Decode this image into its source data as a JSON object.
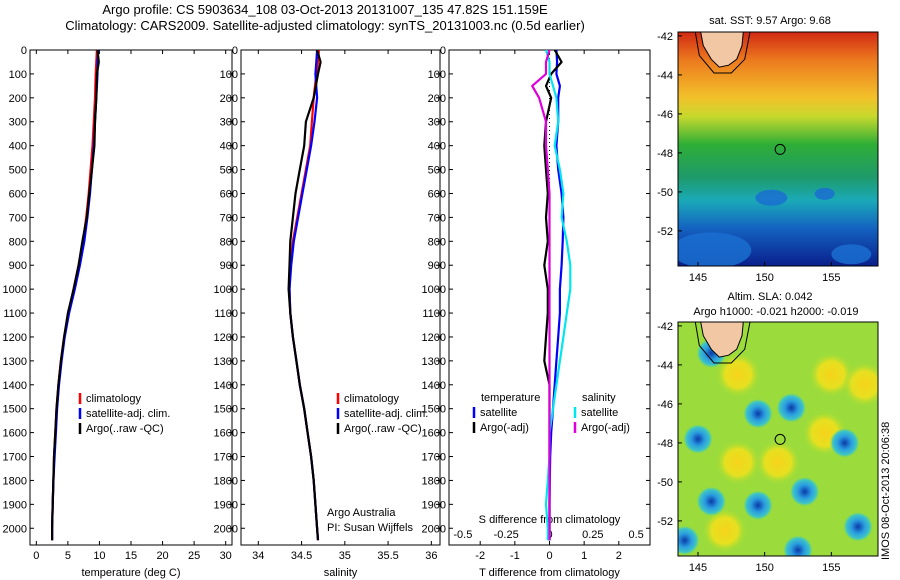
{
  "title": {
    "line1": "Argo profile: CS 5903634_108 03-Oct-2013 20131007_135 47.82S 151.159E",
    "line2": "Climatology: CARS2009. Satellite-adjusted climatology: synTS_20131003.nc (0.5d earlier)"
  },
  "depth_ticks": [
    0,
    100,
    200,
    300,
    400,
    500,
    600,
    700,
    800,
    900,
    1000,
    1100,
    1200,
    1300,
    1400,
    1500,
    1600,
    1700,
    1800,
    1900,
    2000
  ],
  "colors": {
    "red": "#ff0000",
    "blue": "#0000ff",
    "black": "#000000",
    "cyan": "#00e5ee",
    "magenta": "#dd00dd"
  },
  "chart_data": [
    {
      "type": "line",
      "xlabel": "temperature (deg C)",
      "xlim": [
        -1,
        31
      ],
      "ylim": [
        2070,
        0
      ],
      "x_ticks": [
        0,
        5,
        10,
        15,
        20,
        25,
        30
      ],
      "legend": [
        "climatology",
        "satellite-adj. clim.",
        "Argo(..raw -QC)"
      ],
      "depth": [
        0,
        50,
        100,
        200,
        300,
        400,
        500,
        600,
        700,
        800,
        900,
        1000,
        1100,
        1200,
        1300,
        1400,
        1500,
        1600,
        1700,
        1800,
        1900,
        2000,
        2050
      ],
      "series": [
        {
          "name": "climatology",
          "color": "red",
          "values": [
            9.6,
            9.5,
            9.4,
            9.3,
            9.1,
            8.9,
            8.6,
            8.3,
            7.9,
            7.4,
            6.7,
            5.9,
            5.1,
            4.4,
            3.9,
            3.5,
            3.2,
            3.0,
            2.8,
            2.7,
            2.6,
            2.5,
            2.5
          ]
        },
        {
          "name": "satellite-adj. clim.",
          "color": "blue",
          "values": [
            9.8,
            9.7,
            9.7,
            9.5,
            9.3,
            9.1,
            8.8,
            8.5,
            8.1,
            7.6,
            6.9,
            6.1,
            5.2,
            4.5,
            4.0,
            3.6,
            3.3,
            3.1,
            2.9,
            2.7,
            2.6,
            2.5,
            2.5
          ]
        },
        {
          "name": "Argo(..raw -QC)",
          "color": "black",
          "values": [
            9.7,
            9.9,
            9.6,
            9.5,
            9.3,
            9.2,
            8.8,
            8.4,
            8.0,
            7.3,
            6.7,
            5.9,
            5.0,
            4.4,
            3.9,
            3.5,
            3.2,
            3.0,
            2.8,
            2.7,
            2.6,
            2.5,
            2.5
          ]
        }
      ]
    },
    {
      "type": "line",
      "xlabel": "salinity",
      "xlim": [
        33.8,
        36.1
      ],
      "ylim": [
        2070,
        0
      ],
      "x_ticks": [
        34,
        34.5,
        35,
        35.5,
        36
      ],
      "legend": [
        "climatology",
        "satellite-adj. clim.",
        "Argo(..raw -QC)"
      ],
      "annotation": [
        "Argo Australia",
        "PI: Susan Wijffels"
      ],
      "depth": [
        0,
        50,
        100,
        200,
        300,
        400,
        500,
        600,
        700,
        800,
        900,
        1000,
        1100,
        1200,
        1300,
        1400,
        1500,
        1600,
        1700,
        1800,
        1900,
        2000,
        2050
      ],
      "series": [
        {
          "name": "climatology",
          "color": "red",
          "values": [
            34.7,
            34.69,
            34.67,
            34.64,
            34.62,
            34.6,
            34.55,
            34.5,
            34.45,
            34.4,
            34.37,
            34.36,
            34.37,
            34.4,
            34.44,
            34.48,
            34.53,
            34.57,
            34.61,
            34.64,
            34.66,
            34.68,
            34.69
          ]
        },
        {
          "name": "satellite-adj. clim.",
          "color": "blue",
          "values": [
            34.68,
            34.67,
            34.66,
            34.68,
            34.65,
            34.61,
            34.56,
            34.51,
            34.46,
            34.41,
            34.38,
            34.36,
            34.37,
            34.4,
            34.44,
            34.48,
            34.53,
            34.57,
            34.61,
            34.64,
            34.66,
            34.68,
            34.69
          ]
        },
        {
          "name": "Argo(..raw -QC)",
          "color": "black",
          "values": [
            34.68,
            34.72,
            34.69,
            34.64,
            34.55,
            34.53,
            34.48,
            34.43,
            34.4,
            34.37,
            34.36,
            34.35,
            34.37,
            34.4,
            34.44,
            34.48,
            34.53,
            34.57,
            34.61,
            34.64,
            34.66,
            34.68,
            34.69
          ]
        }
      ]
    },
    {
      "type": "line",
      "xlabel": "T difference from climatology",
      "top_label": "S difference from climatology",
      "xlim": [
        -2.9,
        2.9
      ],
      "ylim": [
        2070,
        0
      ],
      "x_ticks": [
        -2,
        -1,
        0,
        1,
        2
      ],
      "s_ticks": [
        -0.5,
        -0.25,
        0,
        0.25,
        0.5
      ],
      "s_tick_labels": [
        "-0.5",
        "-0.25",
        "0",
        "0.25",
        "0.5"
      ],
      "legend_temperature": {
        "header": "temperature",
        "items": [
          "satellite",
          "Argo(-adj)"
        ]
      },
      "legend_salinity": {
        "header": "salinity",
        "items": [
          "satellite",
          "Argo(-adj)"
        ]
      },
      "depth": [
        0,
        50,
        100,
        150,
        200,
        300,
        400,
        500,
        600,
        700,
        800,
        900,
        1000,
        1100,
        1200,
        1300,
        1400,
        1500,
        1600,
        1700,
        1800,
        1900,
        2000,
        2050
      ],
      "series": [
        {
          "name": "T satellite",
          "color": "blue",
          "values": [
            0.2,
            0.22,
            0.2,
            0.3,
            0.25,
            0.25,
            0.2,
            0.25,
            0.35,
            0.4,
            0.38,
            0.35,
            0.3,
            0.3,
            0.25,
            0.2,
            0.15,
            0.1,
            0.05,
            0.02,
            0.01,
            0.0,
            0.0,
            0.0
          ]
        },
        {
          "name": "T Argo(-adj)",
          "color": "black",
          "values": [
            0.15,
            0.35,
            0.05,
            -0.1,
            0.05,
            -0.1,
            -0.15,
            -0.1,
            -0.05,
            -0.1,
            -0.05,
            -0.15,
            -0.05,
            -0.05,
            -0.1,
            -0.15,
            0.0,
            0.0,
            0.0,
            0.0,
            0.0,
            0.0,
            0.0,
            0.0
          ]
        },
        {
          "name": "S satellite",
          "color": "cyan",
          "values": [
            -0.02,
            0.0,
            0.0,
            0.02,
            0.04,
            0.05,
            0.03,
            0.06,
            0.08,
            0.07,
            0.1,
            0.12,
            0.12,
            0.1,
            0.08,
            0.06,
            0.04,
            0.02,
            0.0,
            0.0,
            -0.01,
            -0.02,
            -0.01,
            -0.01
          ]
        },
        {
          "name": "S Argo(-adj)",
          "color": "magenta",
          "values": [
            0.0,
            -0.02,
            -0.02,
            -0.1,
            -0.06,
            -0.02,
            -0.02,
            -0.01,
            0.0,
            0.0,
            0.0,
            0.0,
            0.0,
            0.0,
            0.0,
            0.0,
            0.0,
            0.0,
            0.0,
            0.0,
            0.0,
            0.0,
            0.0,
            0.0
          ]
        }
      ]
    },
    {
      "type": "heatmap",
      "title": "sat. SST: 9.57 Argo: 9.68",
      "xlim": [
        143.5,
        158.5
      ],
      "ylim": [
        -53.8,
        -41.8
      ],
      "x_ticks": [
        145,
        150,
        155
      ],
      "y_ticks": [
        -42,
        -44,
        -46,
        -48,
        -50,
        -52
      ],
      "marker": {
        "lon": 151.159,
        "lat": -47.82
      }
    },
    {
      "type": "heatmap",
      "title": "Altim. SLA: 0.042",
      "subtitle": "Argo h1000: -0.021 h2000: -0.019",
      "xlim": [
        143.5,
        158.5
      ],
      "ylim": [
        -53.8,
        -41.8
      ],
      "x_ticks": [
        145,
        150,
        155
      ],
      "y_ticks": [
        -42,
        -44,
        -46,
        -48,
        -50,
        -52
      ],
      "marker": {
        "lon": 151.159,
        "lat": -47.82
      }
    }
  ],
  "side_note": "IMOS 08-Oct-2013 20:06:38"
}
